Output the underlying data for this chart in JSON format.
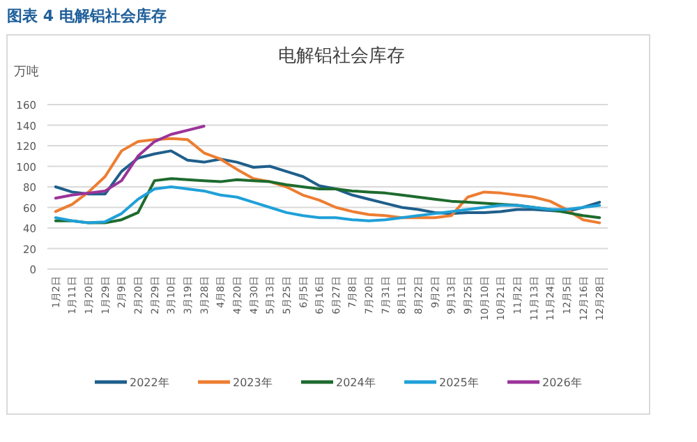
{
  "chart_data": {
    "type": "line",
    "title": "图表 4 电解铝社会库存",
    "subtitle": "电解铝社会库存",
    "ylabel": "万吨",
    "categories": [
      "1月2日",
      "1月11日",
      "1月20日",
      "1月29日",
      "2月9日",
      "2月20日",
      "2月29日",
      "3月10日",
      "3月19日",
      "3月28日",
      "4月8日",
      "4月20日",
      "4月30日",
      "5月13日",
      "5月25日",
      "6月5日",
      "6月16日",
      "6月27日",
      "7月8日",
      "7月20日",
      "7月31日",
      "8月11日",
      "8月22日",
      "9月2日",
      "9月13日",
      "9月25日",
      "10月10日",
      "10月21日",
      "11月2日",
      "11月13日",
      "11月24日",
      "12月5日",
      "12月16日",
      "12月28日"
    ],
    "ylim": [
      0,
      160
    ],
    "yticks": [
      0,
      20,
      40,
      60,
      80,
      100,
      120,
      140,
      160
    ],
    "grid": "y",
    "legend": "bottom",
    "marker": "none",
    "line_style": "solid",
    "series": [
      {
        "name": "2022年",
        "color": "#1f5f8b",
        "values": [
          80,
          75,
          73,
          73,
          95,
          108,
          112,
          115,
          106,
          104,
          107,
          104,
          99,
          100,
          95,
          90,
          81,
          78,
          72,
          68,
          64,
          60,
          58,
          55,
          54,
          55,
          55,
          56,
          58,
          58,
          57,
          56,
          60,
          65
        ]
      },
      {
        "name": "2023年",
        "color": "#ed7d31",
        "values": [
          56,
          63,
          75,
          90,
          115,
          124,
          126,
          127,
          126,
          113,
          107,
          97,
          88,
          85,
          80,
          72,
          67,
          60,
          56,
          53,
          52,
          50,
          50,
          50,
          52,
          70,
          75,
          74,
          72,
          70,
          66,
          58,
          48,
          45
        ]
      },
      {
        "name": "2024年",
        "color": "#1e6b2e",
        "values": [
          47,
          47,
          45,
          45,
          48,
          55,
          86,
          88,
          87,
          86,
          85,
          87,
          86,
          85,
          82,
          80,
          78,
          78,
          76,
          75,
          74,
          72,
          70,
          68,
          66,
          65,
          64,
          63,
          62,
          60,
          58,
          55,
          52,
          50
        ]
      },
      {
        "name": "2025年",
        "color": "#1fa0d8",
        "values": [
          50,
          47,
          45,
          46,
          54,
          68,
          78,
          80,
          78,
          76,
          72,
          70,
          65,
          60,
          55,
          52,
          50,
          50,
          48,
          47,
          48,
          50,
          52,
          54,
          56,
          58,
          60,
          62,
          62,
          60,
          58,
          58,
          60,
          62
        ]
      },
      {
        "name": "2026年",
        "color": "#9b3399",
        "values": [
          69,
          72,
          74,
          76,
          86,
          110,
          124,
          131,
          135,
          139,
          null,
          null,
          null,
          null,
          null,
          null,
          null,
          null,
          null,
          null,
          null,
          null,
          null,
          null,
          null,
          null,
          null,
          null,
          null,
          null,
          null,
          null,
          null,
          null
        ]
      }
    ]
  }
}
